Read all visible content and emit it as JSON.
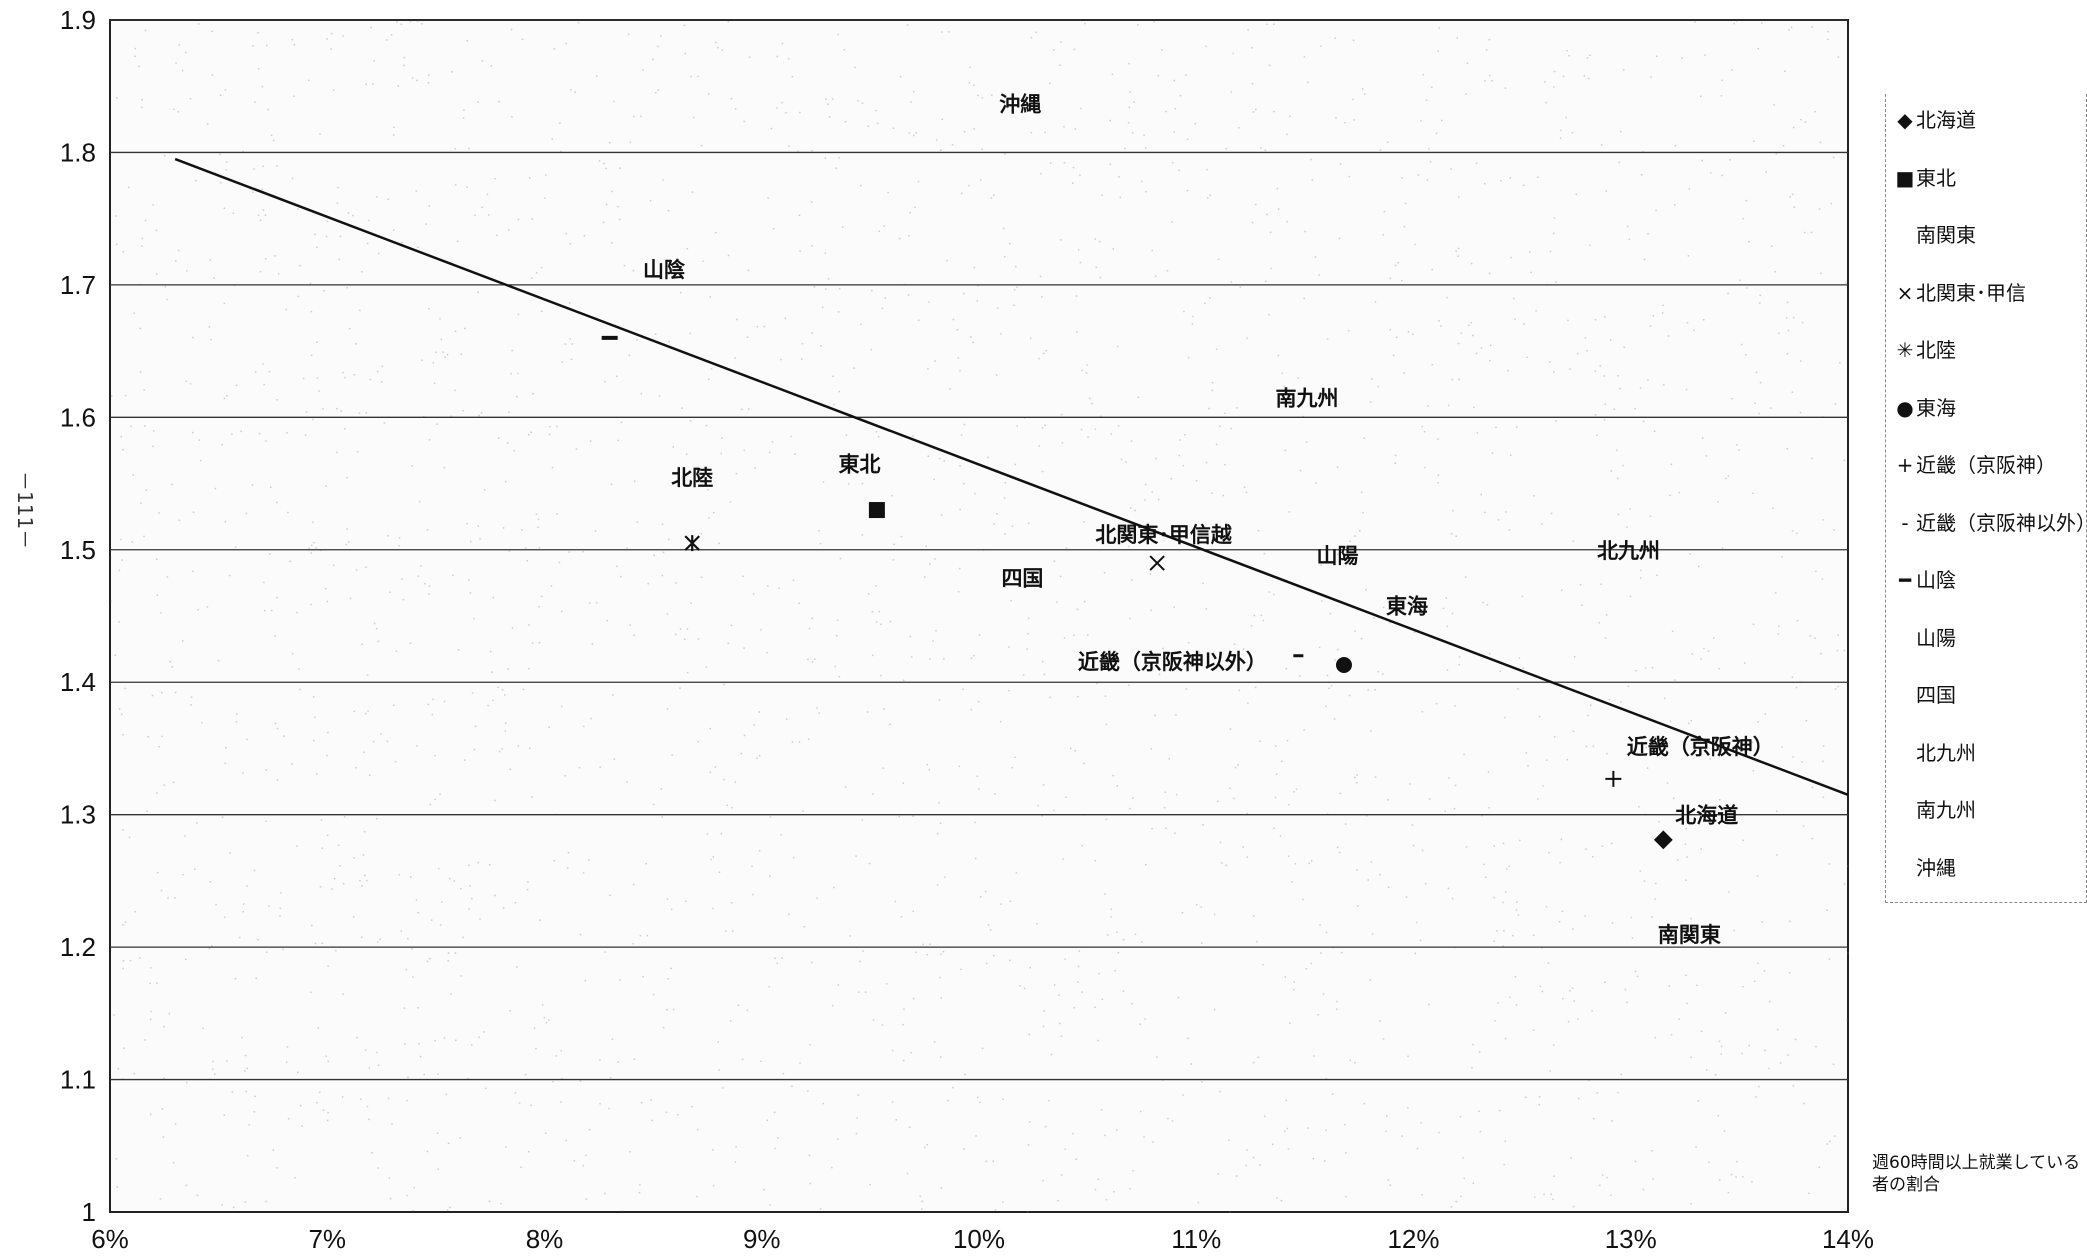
{
  "page_mark": "－111－",
  "x_axis_note": "週60時間以上就業している者の割合",
  "legend": [
    {
      "symbol": "◆",
      "label": "北海道"
    },
    {
      "symbol": "■",
      "label": "東北"
    },
    {
      "symbol": "",
      "label": "南関東"
    },
    {
      "symbol": "×",
      "label": "北関東･甲信"
    },
    {
      "symbol": "✳",
      "label": "北陸"
    },
    {
      "symbol": "●",
      "label": "東海"
    },
    {
      "symbol": "+",
      "label": "近畿（京阪神）"
    },
    {
      "symbol": "-",
      "label": "近畿（京阪神以外）"
    },
    {
      "symbol": "━",
      "label": "山陰"
    },
    {
      "symbol": "",
      "label": "山陽"
    },
    {
      "symbol": "",
      "label": "四国"
    },
    {
      "symbol": "",
      "label": "北九州"
    },
    {
      "symbol": "",
      "label": "南九州"
    },
    {
      "symbol": "",
      "label": "沖縄"
    }
  ],
  "chart_data": {
    "type": "scatter",
    "xlim": [
      0.06,
      0.14
    ],
    "ylim": [
      1.0,
      1.9
    ],
    "x_ticks": [
      0.06,
      0.07,
      0.08,
      0.09,
      0.1,
      0.11,
      0.12,
      0.13,
      0.14
    ],
    "x_tick_labels": [
      "6%",
      "7%",
      "8%",
      "9%",
      "10%",
      "11%",
      "12%",
      "13%",
      "14%"
    ],
    "y_ticks": [
      1.0,
      1.1,
      1.2,
      1.3,
      1.4,
      1.5,
      1.6,
      1.7,
      1.8,
      1.9
    ],
    "y_tick_labels": [
      "1",
      "1.1",
      "1.2",
      "1.3",
      "1.4",
      "1.5",
      "1.6",
      "1.7",
      "1.8",
      "1.9"
    ],
    "grid": "horizontal",
    "legend_position": "right",
    "trendline": {
      "x": [
        0.063,
        0.14
      ],
      "y": [
        1.795,
        1.315
      ]
    },
    "points": [
      {
        "label": "北海道",
        "marker": "diamond",
        "x": 0.1315,
        "y": 1.281,
        "text_x": 0.1335,
        "text_y": 1.3
      },
      {
        "label": "東北",
        "marker": "square",
        "x": 0.0953,
        "y": 1.53,
        "text_x": 0.0945,
        "text_y": 1.565
      },
      {
        "label": "南関東",
        "marker": "none",
        "x": 0.1327,
        "y": 1.21,
        "text_x": 0.1327,
        "text_y": 1.21
      },
      {
        "label": "北関東･甲信越",
        "marker": "x",
        "x": 0.1082,
        "y": 1.49,
        "text_x": 0.1085,
        "text_y": 1.512
      },
      {
        "label": "北陸",
        "marker": "asterisk",
        "x": 0.0868,
        "y": 1.505,
        "text_x": 0.0868,
        "text_y": 1.555
      },
      {
        "label": "東海",
        "marker": "circle",
        "x": 0.1168,
        "y": 1.413,
        "text_x": 0.1197,
        "text_y": 1.458
      },
      {
        "label": "近畿（京阪神）",
        "marker": "plus",
        "x": 0.1292,
        "y": 1.327,
        "text_x": 0.1332,
        "text_y": 1.352
      },
      {
        "label": "近畿（京阪神以外）",
        "marker": "dash",
        "x": 0.1147,
        "y": 1.42,
        "text_x": 0.1089,
        "text_y": 1.416
      },
      {
        "label": "山陰",
        "marker": "bar",
        "x": 0.083,
        "y": 1.66,
        "text_x": 0.0855,
        "text_y": 1.712
      },
      {
        "label": "山陽",
        "marker": "none",
        "x": 0.1165,
        "y": 1.496,
        "text_x": 0.1165,
        "text_y": 1.496
      },
      {
        "label": "四国",
        "marker": "none",
        "x": 0.102,
        "y": 1.479,
        "text_x": 0.102,
        "text_y": 1.479
      },
      {
        "label": "北九州",
        "marker": "none",
        "x": 0.1299,
        "y": 1.5,
        "text_x": 0.1299,
        "text_y": 1.5
      },
      {
        "label": "南九州",
        "marker": "none",
        "x": 0.1151,
        "y": 1.615,
        "text_x": 0.1151,
        "text_y": 1.615
      },
      {
        "label": "沖縄",
        "marker": "none",
        "x": 0.1019,
        "y": 1.837,
        "text_x": 0.1019,
        "text_y": 1.837
      }
    ]
  }
}
